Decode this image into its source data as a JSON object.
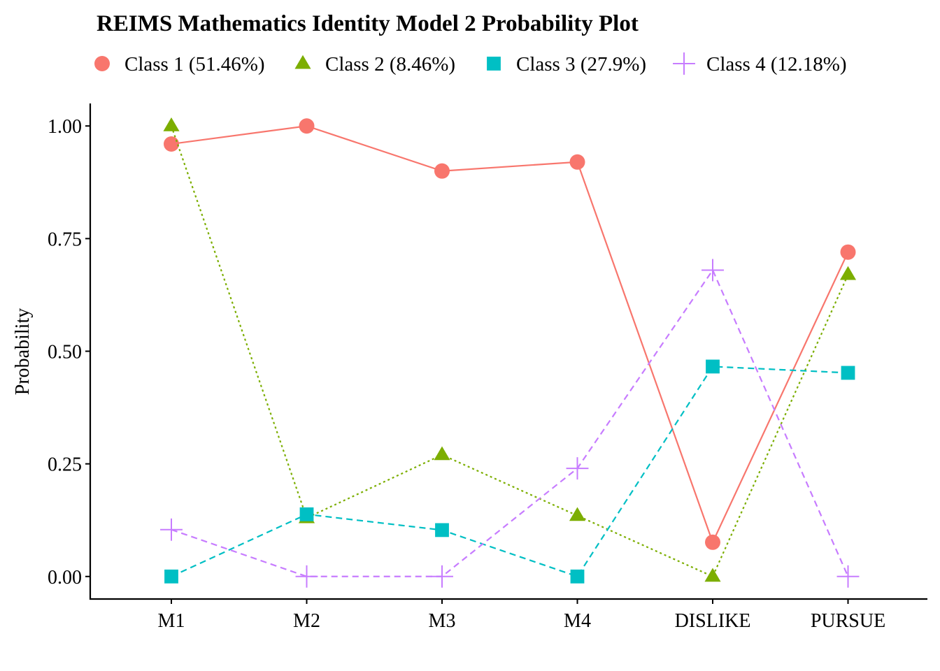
{
  "chart_data": {
    "type": "line",
    "title": "REIMS Mathematics Identity Model 2 Probability Plot",
    "xlabel": "",
    "ylabel": "Probability",
    "categories": [
      "M1",
      "M2",
      "M3",
      "M4",
      "DISLIKE",
      "PURSUE"
    ],
    "ylim": [
      -0.05,
      1.05
    ],
    "yticks": [
      0.0,
      0.25,
      0.5,
      0.75,
      1.0
    ],
    "ytick_labels": [
      "0.00",
      "0.25",
      "0.50",
      "0.75",
      "1.00"
    ],
    "grid": false,
    "legend_position": "top",
    "series": [
      {
        "name": "Class 1 (51.46%)",
        "values": [
          0.96,
          1.0,
          0.9,
          0.92,
          0.076,
          0.72
        ],
        "color": "#F8766D",
        "marker": "circle",
        "line_style": "solid"
      },
      {
        "name": "Class 2 (8.46%)",
        "values": [
          1.0,
          0.13,
          0.27,
          0.135,
          0.0,
          0.67
        ],
        "color": "#7CAE00",
        "marker": "triangle",
        "line_style": "dotted"
      },
      {
        "name": "Class 3 (27.9%)",
        "values": [
          0.0,
          0.138,
          0.103,
          0.0,
          0.466,
          0.452
        ],
        "color": "#00BFC4",
        "marker": "square",
        "line_style": "dashed"
      },
      {
        "name": "Class 4 (12.18%)",
        "values": [
          0.104,
          0.0,
          0.0,
          0.24,
          0.68,
          0.0
        ],
        "color": "#C77CFF",
        "marker": "plus",
        "line_style": "dashed"
      }
    ]
  }
}
